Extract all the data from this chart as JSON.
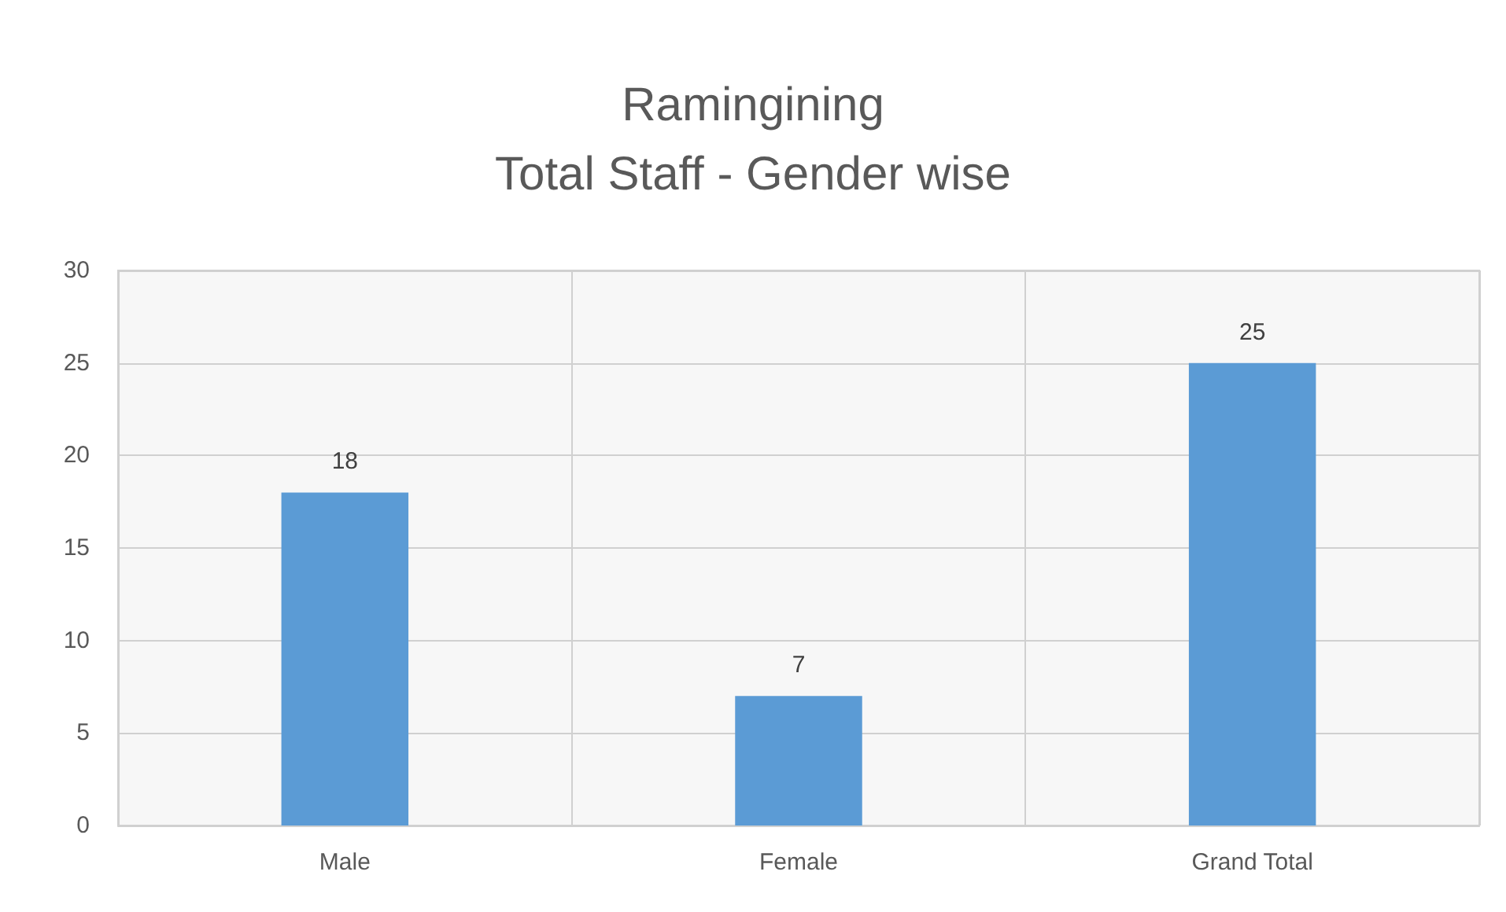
{
  "chart_data": {
    "type": "bar",
    "title": "Ramingining\nTotal Staff - Gender wise",
    "categories": [
      "Male",
      "Female",
      "Grand Total"
    ],
    "values": [
      18,
      7,
      25
    ],
    "color": "#5b9bd5",
    "ylim": [
      0,
      30
    ],
    "yticks": [
      0,
      5,
      10,
      15,
      20,
      25,
      30
    ],
    "grid": true,
    "data_labels": true
  }
}
